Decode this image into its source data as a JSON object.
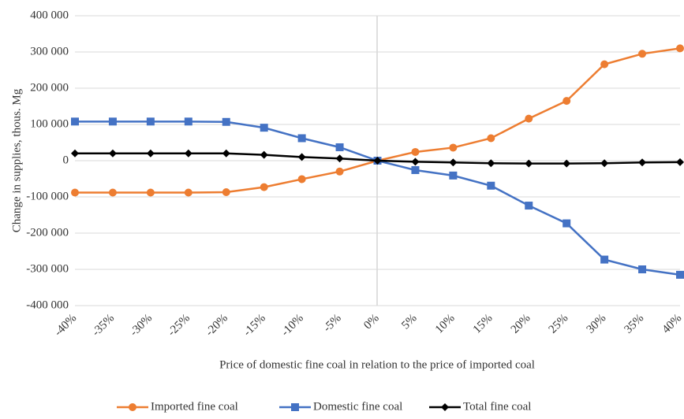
{
  "chart_data": {
    "type": "line",
    "y_label": "Change in supplies, thous. Mg",
    "x_label": "Price of domestic fine coal in relation to the price of imported coal",
    "categories": [
      "-40%",
      "-35%",
      "-30%",
      "-25%",
      "-20%",
      "-15%",
      "-10%",
      "-5%",
      "0%",
      "5%",
      "10%",
      "15%",
      "20%",
      "25%",
      "30%",
      "35%",
      "40%"
    ],
    "series": [
      {
        "name": "Imported fine coal",
        "color": "#ed7d31",
        "marker": "circle",
        "values": [
          -88000,
          -88000,
          -88000,
          -88000,
          -87000,
          -73000,
          -51000,
          -30000,
          0,
          24000,
          36000,
          62000,
          116000,
          165000,
          266000,
          295000,
          310000
        ]
      },
      {
        "name": "Domestic fine coal",
        "color": "#4472c4",
        "marker": "square",
        "values": [
          108000,
          108000,
          108000,
          108000,
          107000,
          91000,
          62000,
          37000,
          0,
          -26000,
          -41000,
          -69000,
          -124000,
          -173000,
          -273000,
          -300000,
          -315000
        ]
      },
      {
        "name": "Total fine coal",
        "color": "#000000",
        "marker": "diamond",
        "values": [
          20000,
          20000,
          20000,
          20000,
          20000,
          16000,
          10000,
          6000,
          0,
          -3000,
          -5000,
          -7000,
          -8000,
          -8000,
          -7000,
          -5000,
          -4000
        ]
      }
    ],
    "ylim": [
      -400000,
      400000
    ],
    "yticks": [
      {
        "value": -400000,
        "label": "-400 000"
      },
      {
        "value": -300000,
        "label": "-300 000"
      },
      {
        "value": -200000,
        "label": "-200 000"
      },
      {
        "value": -100000,
        "label": "-100 000"
      },
      0,
      {
        "value": 100000,
        "label": "100 000"
      },
      {
        "value": 200000,
        "label": "200 000"
      },
      {
        "value": 300000,
        "label": "300 000"
      },
      {
        "value": 400000,
        "label": "400 000"
      }
    ],
    "grid": true,
    "legend": "bottom"
  }
}
